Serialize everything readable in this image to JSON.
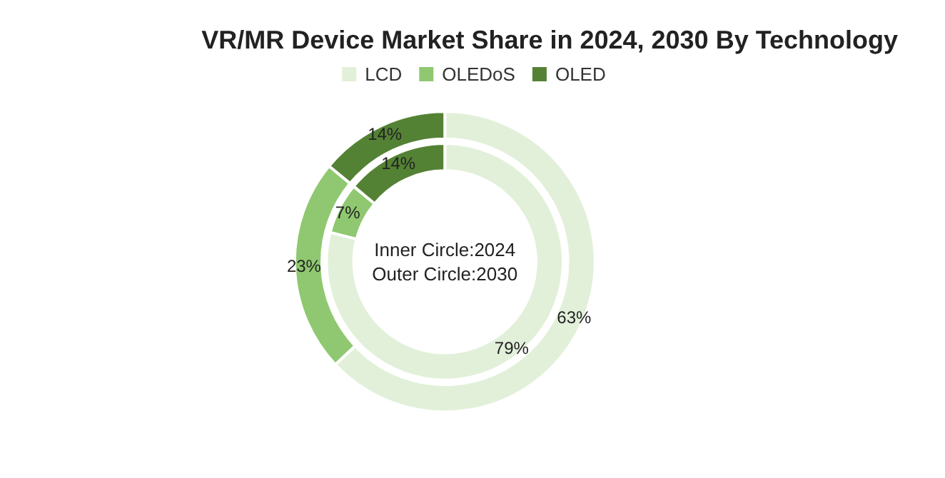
{
  "chart_data": {
    "type": "donut",
    "title": "VR/MR Device Market Share in 2024, 2030 By Technology",
    "categories": [
      "LCD",
      "OLEDoS",
      "OLED"
    ],
    "colors": [
      "#e2f0d9",
      "#8fc870",
      "#548235"
    ],
    "series": [
      {
        "values": [
          79,
          7,
          14
        ],
        "value_labels": [
          "79%",
          "7%",
          "14%"
        ]
      },
      {
        "values": [
          63,
          23,
          14
        ],
        "value_labels": [
          "63%",
          "23%",
          "14%"
        ]
      }
    ],
    "annotations": [
      "Inner Circle:2024",
      "Outer Circle:2030"
    ],
    "legend": "top"
  }
}
